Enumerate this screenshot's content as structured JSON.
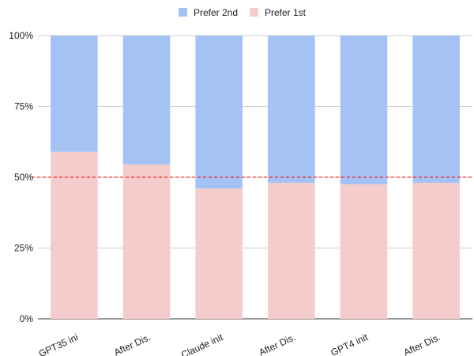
{
  "chart_data": {
    "type": "bar",
    "stacked": true,
    "normalized": true,
    "categories": [
      "GPT35 ini",
      "After Dis.",
      "Claude init",
      "After Dis.",
      "GPT4 init",
      "After Dis."
    ],
    "series": [
      {
        "name": "Prefer 1st",
        "color": "#f4cccc",
        "values": [
          59,
          54.5,
          46,
          48,
          47.5,
          48
        ]
      },
      {
        "name": "Prefer 2nd",
        "color": "#a4c2f4",
        "values": [
          41,
          45.5,
          54,
          52,
          52.5,
          52
        ]
      }
    ],
    "legend_order": [
      "Prefer 2nd",
      "Prefer 1st"
    ],
    "legend_position": "top-center",
    "ylim": [
      0,
      100
    ],
    "yticks": [
      "0%",
      "25%",
      "50%",
      "75%",
      "100%"
    ],
    "yticks_values": [
      0,
      25,
      50,
      75,
      100
    ],
    "reference_line": {
      "value": 50,
      "color": "#ff0000",
      "style": "dashed"
    },
    "grid": true,
    "xlabel": "",
    "ylabel": "",
    "title": ""
  }
}
